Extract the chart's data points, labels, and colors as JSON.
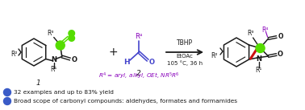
{
  "bg_color": "#ffffff",
  "bullet_color": "#3a5bc7",
  "bullet1_text": "32 examples and up to 83% yield",
  "bullet2_text": "Broad scope of carbonyl compounds: aldehydes, formates and formamides",
  "r4_text": "R$^4$ = aryl, alkyl, OEt, NR$^5$R$^6$",
  "tbhp_text": "TBHP",
  "etoac_text": "EtOAc",
  "temp_text": "105 °C, 36 h",
  "arrow_color": "#000000",
  "green_color": "#55dd00",
  "red_color": "#cc1111",
  "blue_color": "#4444cc",
  "purple_color": "#8800bb",
  "black_color": "#1a1a1a",
  "gray_color": "#555555"
}
